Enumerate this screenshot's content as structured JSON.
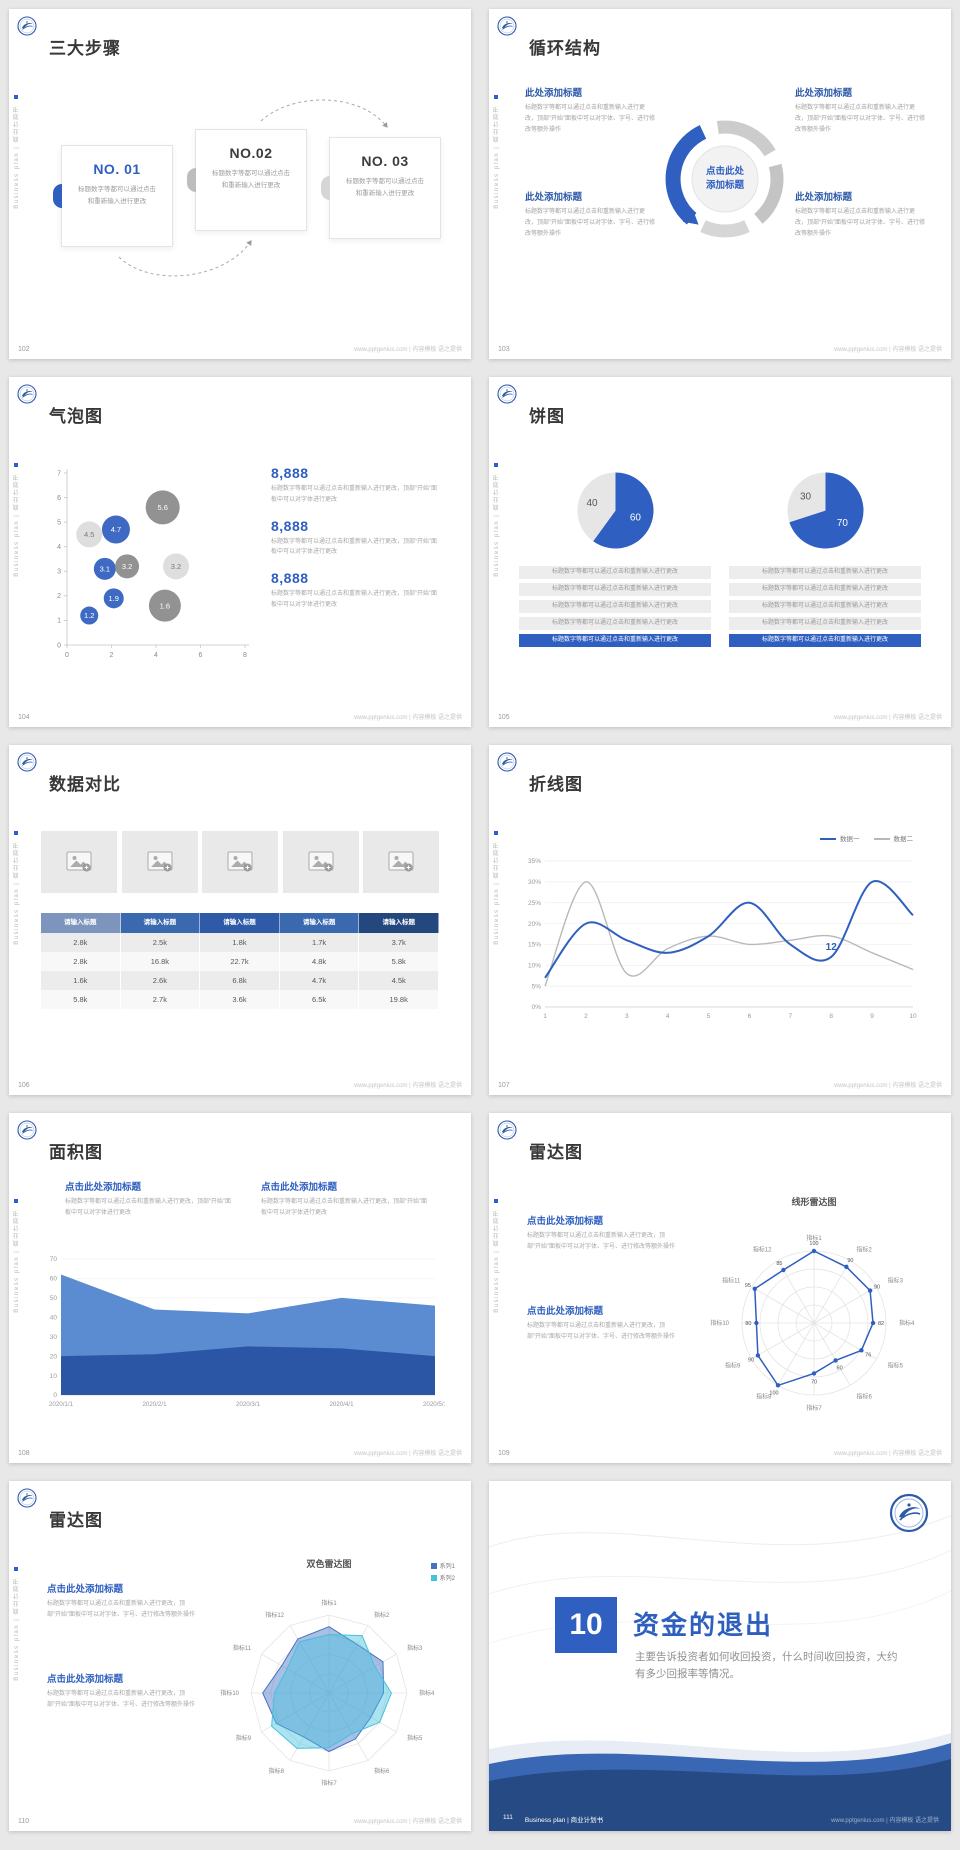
{
  "colors": {
    "accent": "#2f5fc0",
    "accent_dark": "#2e5aa8",
    "table_navy": "#24477e",
    "gray_dark": "#8a8a8a",
    "gray_light": "#dcdcdc",
    "teal": "#45c0dd"
  },
  "chrome": {
    "vertical_label": "Business plan | 商业计划书",
    "site_footer": "www.pptgenius.com | 内容模板 语之提供"
  },
  "slides": {
    "s102": {
      "page": "102",
      "title": "三大步骤",
      "steps": [
        {
          "no": "NO. 01",
          "text": "标题数字等都可以通过点击和重新输入进行更改",
          "accent": "#2f5fc0"
        },
        {
          "no": "NO.02",
          "text": "标题数字等都可以通过点击和重新输入进行更改",
          "accent": "#bdbdbd"
        },
        {
          "no": "NO. 03",
          "text": "标题数字等都可以通过点击和重新输入进行更改",
          "accent": "#d6d6d6"
        }
      ]
    },
    "s103": {
      "page": "103",
      "title": "循环结构",
      "center_label": "点击此处添加标题",
      "blocks": [
        {
          "heading": "此处添加标题",
          "text": "标题数字等都可以通过点击和重新输入进行更改，顶部“开始”面板中可以对字体、字号、进行修改等额外操作"
        },
        {
          "heading": "此处添加标题",
          "text": "标题数字等都可以通过点击和重新输入进行更改，顶部“开始”面板中可以对字体、字号、进行修改等额外操作"
        },
        {
          "heading": "此处添加标题",
          "text": "标题数字等都可以通过点击和重新输入进行更改，顶部“开始”面板中可以对字体、字号、进行修改等额外操作"
        },
        {
          "heading": "此处添加标题",
          "text": "标题数字等都可以通过点击和重新输入进行更改，顶部“开始”面板中可以对字体、字号、进行修改等额外操作"
        }
      ]
    },
    "s104": {
      "page": "104",
      "title": "气泡图",
      "chart": {
        "type": "scatter",
        "x_ticks": [
          0,
          2,
          4,
          6,
          8
        ],
        "y_ticks": [
          0,
          1,
          2,
          3,
          4,
          5,
          6,
          7
        ],
        "bubbles": [
          {
            "x": 1.0,
            "y": 4.5,
            "r": 13,
            "label": "4.5",
            "color": "#dcdcdc",
            "label_color": "#777777"
          },
          {
            "x": 2.2,
            "y": 4.7,
            "r": 14,
            "label": "4.7",
            "color": "#2f5fc0",
            "label_color": "#ffffff"
          },
          {
            "x": 4.3,
            "y": 5.6,
            "r": 17,
            "label": "5.6",
            "color": "#8a8a8a",
            "label_color": "#ffffff"
          },
          {
            "x": 1.7,
            "y": 3.1,
            "r": 11,
            "label": "3.1",
            "color": "#2f5fc0",
            "label_color": "#ffffff"
          },
          {
            "x": 2.7,
            "y": 3.2,
            "r": 12,
            "label": "3.2",
            "color": "#8a8a8a",
            "label_color": "#ffffff"
          },
          {
            "x": 4.9,
            "y": 3.2,
            "r": 13,
            "label": "3.2",
            "color": "#dcdcdc",
            "label_color": "#777777"
          },
          {
            "x": 2.1,
            "y": 1.9,
            "r": 10,
            "label": "1.9",
            "color": "#2f5fc0",
            "label_color": "#ffffff"
          },
          {
            "x": 1.0,
            "y": 1.2,
            "r": 9,
            "label": "1.2",
            "color": "#2f5fc0",
            "label_color": "#ffffff"
          },
          {
            "x": 4.4,
            "y": 1.6,
            "r": 16,
            "label": "1.6",
            "color": "#8a8a8a",
            "label_color": "#ffffff"
          }
        ]
      },
      "stats": [
        {
          "value": "8,888",
          "text": "标题数字等都可以通过点击和重新输入进行更改，顶部“开始”面板中可以对字体进行更改"
        },
        {
          "value": "8,888",
          "text": "标题数字等都可以通过点击和重新输入进行更改，顶部“开始”面板中可以对字体进行更改"
        },
        {
          "value": "8,888",
          "text": "标题数字等都可以通过点击和重新输入进行更改，顶部“开始”面板中可以对字体进行更改"
        }
      ]
    },
    "s105": {
      "page": "105",
      "title": "饼图",
      "row_text": "标题数字等都可以通过点击和重新输入进行更改",
      "pies": [
        {
          "slices": [
            {
              "value": 60,
              "label": "60",
              "color": "#2f5fc0",
              "label_color": "#ffffff",
              "label_r": 0.55
            },
            {
              "value": 40,
              "label": "40",
              "color": "#e6e6e6",
              "label_color": "#555555",
              "label_r": 0.65
            }
          ]
        },
        {
          "slices": [
            {
              "value": 70,
              "label": "70",
              "color": "#2f5fc0",
              "label_color": "#ffffff",
              "label_r": 0.55
            },
            {
              "value": 30,
              "label": "30",
              "color": "#e6e6e6",
              "label_color": "#555555",
              "label_r": 0.65
            }
          ]
        }
      ]
    },
    "s106": {
      "page": "106",
      "title": "数据对比",
      "table": {
        "header": "请输入标题",
        "header_colors": [
          "#7d95bd",
          "#3b69b0",
          "#2e5aa8",
          "#3b69b0",
          "#24477e"
        ],
        "rows": [
          [
            "2.8k",
            "2.5k",
            "1.8k",
            "1.7k",
            "3.7k"
          ],
          [
            "2.8k",
            "16.8k",
            "22.7k",
            "4.8k",
            "5.8k"
          ],
          [
            "1.6k",
            "2.6k",
            "6.8k",
            "4.7k",
            "4.5k"
          ],
          [
            "5.8k",
            "2.7k",
            "3.6k",
            "6.5k",
            "19.8k"
          ]
        ]
      }
    },
    "s107": {
      "page": "107",
      "title": "折线图",
      "chart": {
        "type": "line",
        "x_ticks": [
          "1",
          "2",
          "3",
          "4",
          "5",
          "6",
          "7",
          "8",
          "9",
          "10"
        ],
        "y_ticks": [
          "0%",
          "5%",
          "10%",
          "15%",
          "20%",
          "25%",
          "30%",
          "35%"
        ],
        "series": [
          {
            "name": "数据一",
            "color": "#2f5fc0",
            "values": [
              7,
              20,
              16,
              13,
              17,
              25,
              15,
              12,
              30,
              22
            ]
          },
          {
            "name": "数据二",
            "color": "#b8b8b8",
            "values": [
              5,
              30,
              8,
              14,
              17,
              15,
              16,
              17,
              13,
              9
            ]
          }
        ],
        "point_label": {
          "series": 0,
          "index": 7,
          "text": "12"
        }
      }
    },
    "s108": {
      "page": "108",
      "title": "面积图",
      "blocks": [
        {
          "heading": "点击此处添加标题",
          "text": "标题数字等都可以通过点击和重新输入进行更改，顶部“开始”面板中可以对字体进行更改"
        },
        {
          "heading": "点击此处添加标题",
          "text": "标题数字等都可以通过点击和重新输入进行更改，顶部“开始”面板中可以对字体进行更改"
        }
      ],
      "chart": {
        "type": "area",
        "categories": [
          "2020/1/1",
          "2020/2/1",
          "2020/3/1",
          "2020/4/1",
          "2020/5/1"
        ],
        "y_ticks": [
          0,
          10,
          20,
          30,
          40,
          50,
          60,
          70
        ],
        "series": [
          {
            "color": "#2a56a5",
            "values": [
              20,
              21,
              25,
              24,
              20
            ]
          },
          {
            "color": "#5b8bd0",
            "values": [
              62,
              44,
              42,
              50,
              46
            ]
          }
        ]
      }
    },
    "s109": {
      "page": "109",
      "title": "雷达图",
      "chart_title": "线形雷达图",
      "blocks": [
        {
          "heading": "点击此处添加标题",
          "text": "标题数字等都可以通过点击和重新输入进行更改，顶部“开始”面板中可以对字体、字号、进行修改等额外操作"
        },
        {
          "heading": "点击此处添加标题",
          "text": "标题数字等都可以通过点击和重新输入进行更改，顶部“开始”面板中可以对字体、字号、进行修改等额外操作"
        }
      ],
      "chart": {
        "type": "radar",
        "max": 100,
        "axes": [
          "指标1",
          "指标2",
          "指标3",
          "指标4",
          "指标5",
          "指标6",
          "指标7",
          "指标8",
          "指标9",
          "指标10",
          "指标11",
          "指标12"
        ],
        "values": [
          100,
          90,
          90,
          82,
          76,
          60,
          70,
          100,
          90,
          80,
          95,
          85
        ],
        "color": "#2f5fc0"
      }
    },
    "s110": {
      "page": "110",
      "title": "雷达图",
      "chart_title": "双色雷达图",
      "legend": [
        "系列1",
        "系列2"
      ],
      "blocks": [
        {
          "heading": "点击此处添加标题",
          "text": "标题数字等都可以通过点击和重新输入进行更改，顶部“开始”面板中可以对字体、字号、进行修改等额外操作"
        },
        {
          "heading": "点击此处添加标题",
          "text": "标题数字等都可以通过点击和重新输入进行更改，顶部“开始”面板中可以对字体、字号、进行修改等额外操作"
        }
      ],
      "chart": {
        "type": "radar",
        "max": 100,
        "axes": [
          "指标1",
          "指标2",
          "指标3",
          "指标4",
          "指标5",
          "指标6",
          "指标7",
          "指标8",
          "指标9",
          "指标10",
          "指标11",
          "指标12"
        ],
        "series": [
          {
            "name": "系列1",
            "color": "#4472c4",
            "values": [
              85,
              72,
              80,
              70,
              62,
              68,
              75,
              65,
              78,
              85,
              70,
              80
            ]
          },
          {
            "name": "系列2",
            "color": "#45c0dd",
            "values": [
              75,
              85,
              68,
              80,
              75,
              60,
              70,
              82,
              85,
              70,
              62,
              76
            ]
          }
        ]
      }
    },
    "s111": {
      "page": "111",
      "number": "10",
      "title": "资金的退出",
      "body": "主要告诉投资者如何收回投资，什么时间收回投资，大约有多少回报率等情况。",
      "footer_label": "Business plan | 商业计划书"
    }
  }
}
